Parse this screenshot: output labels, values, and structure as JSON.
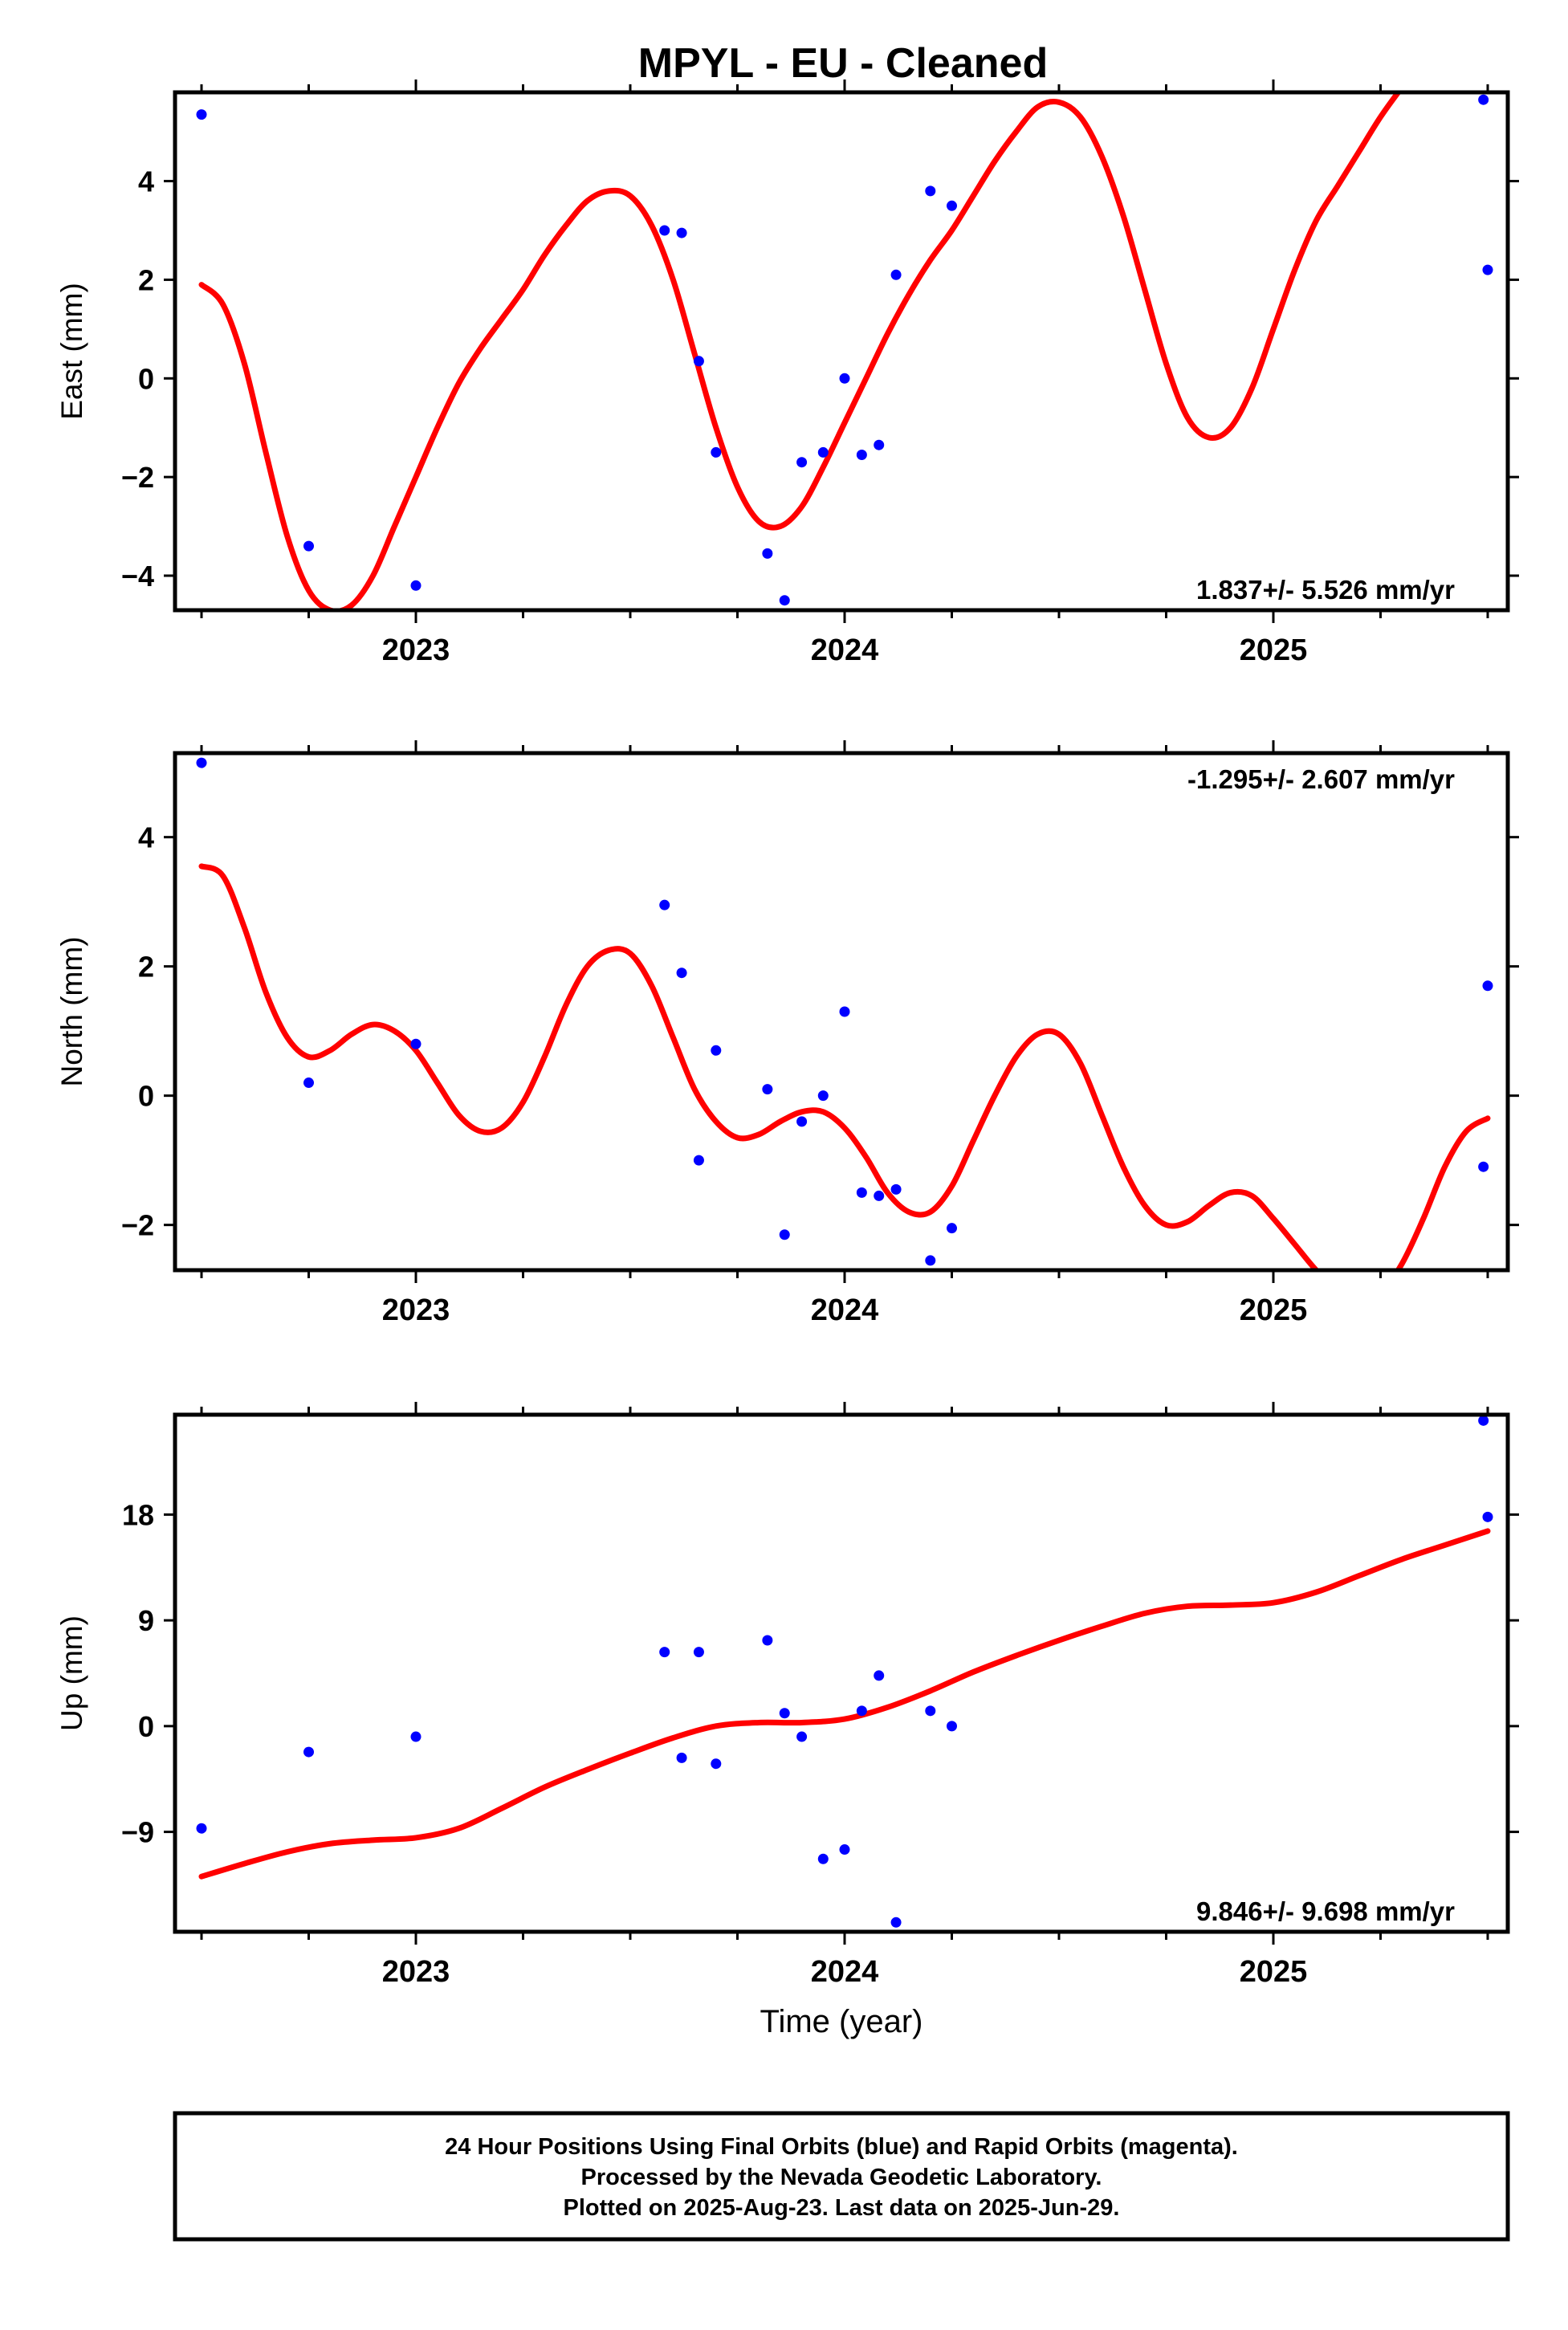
{
  "title": "MPYL  - EU - Cleaned",
  "footer": {
    "lines": [
      "24 Hour Positions Using Final Orbits (blue) and Rapid Orbits (magenta).",
      "Processed by the Nevada Geodetic Laboratory.",
      "Plotted on 2025-Aug-23. Last data on 2025-Jun-29."
    ]
  },
  "colors": {
    "points": "#0000ff",
    "fit": "#ff0000",
    "frame": "#000000"
  },
  "chart_data": [
    {
      "type": "scatter",
      "ylabel": "East (mm)",
      "xlabel": "",
      "xlim": [
        2022.5,
        2025.6
      ],
      "ylim": [
        -4.7,
        5.8
      ],
      "yticks": [
        -4,
        -2,
        0,
        2,
        4
      ],
      "yticklabels": [
        "−4",
        "−2",
        "0",
        "2",
        "4"
      ],
      "xticks": [
        2023,
        2024,
        2025
      ],
      "xticklabels": [
        "2023",
        "2024",
        "2025"
      ],
      "rate_label": "1.837+/- 5.526 mm/yr",
      "rate_position": "bottom-right",
      "series": [
        {
          "kind": "points",
          "x": [
            2022.5,
            2022.75,
            2023.0,
            2023.58,
            2023.62,
            2023.66,
            2023.7,
            2023.82,
            2023.86,
            2023.9,
            2023.95,
            2024.0,
            2024.04,
            2024.08,
            2024.12,
            2024.2,
            2024.25,
            2025.49,
            2025.5
          ],
          "y": [
            5.35,
            -3.4,
            -4.2,
            3.0,
            2.95,
            0.35,
            -1.5,
            -3.55,
            -4.5,
            -1.7,
            -1.5,
            0.0,
            -1.55,
            -1.35,
            2.1,
            3.8,
            3.5,
            5.65,
            2.2
          ]
        },
        {
          "kind": "line",
          "x": [
            2022.5,
            2022.55,
            2022.6,
            2022.65,
            2022.7,
            2022.75,
            2022.8,
            2022.85,
            2022.9,
            2022.95,
            2023.0,
            2023.05,
            2023.1,
            2023.15,
            2023.2,
            2023.25,
            2023.3,
            2023.35,
            2023.4,
            2023.45,
            2023.5,
            2023.55,
            2023.6,
            2023.65,
            2023.7,
            2023.75,
            2023.8,
            2023.85,
            2023.9,
            2023.95,
            2024.0,
            2024.05,
            2024.1,
            2024.15,
            2024.2,
            2024.25,
            2024.3,
            2024.35,
            2024.4,
            2024.45,
            2024.5,
            2024.55,
            2024.6,
            2024.65,
            2024.7,
            2024.75,
            2024.8,
            2024.85,
            2024.9,
            2024.95,
            2025.0,
            2025.05,
            2025.1,
            2025.15,
            2025.2,
            2025.25,
            2025.3,
            2025.32
          ],
          "y": [
            1.9,
            1.5,
            0.3,
            -1.5,
            -3.2,
            -4.3,
            -4.7,
            -4.6,
            -4.0,
            -3.0,
            -2.0,
            -1.0,
            -0.1,
            0.6,
            1.2,
            1.8,
            2.5,
            3.1,
            3.6,
            3.8,
            3.7,
            3.1,
            2.0,
            0.5,
            -1.0,
            -2.2,
            -2.9,
            -3.0,
            -2.6,
            -1.8,
            -0.9,
            0.0,
            0.9,
            1.7,
            2.4,
            3.0,
            3.7,
            4.4,
            5.0,
            5.5,
            5.6,
            5.3,
            4.5,
            3.3,
            1.8,
            0.3,
            -0.8,
            -1.2,
            -1.0,
            -0.2,
            1.0,
            2.2,
            3.2,
            3.9,
            4.6,
            5.3,
            5.9,
            6.1
          ]
        }
      ]
    },
    {
      "type": "scatter",
      "ylabel": "North (mm)",
      "xlabel": "",
      "xlim": [
        2022.5,
        2025.6
      ],
      "ylim": [
        -2.7,
        5.3
      ],
      "yticks": [
        -2,
        0,
        2,
        4
      ],
      "yticklabels": [
        "−2",
        "0",
        "2",
        "4"
      ],
      "xticks": [
        2023,
        2024,
        2025
      ],
      "xticklabels": [
        "2023",
        "2024",
        "2025"
      ],
      "rate_label": "-1.295+/- 2.607 mm/yr",
      "rate_position": "top-right",
      "series": [
        {
          "kind": "points",
          "x": [
            2022.5,
            2022.75,
            2023.0,
            2023.58,
            2023.62,
            2023.66,
            2023.7,
            2023.82,
            2023.86,
            2023.9,
            2023.95,
            2024.0,
            2024.04,
            2024.08,
            2024.12,
            2024.2,
            2024.25,
            2025.49,
            2025.5
          ],
          "y": [
            5.15,
            0.2,
            0.8,
            2.95,
            1.9,
            -1.0,
            0.7,
            0.1,
            -2.15,
            -0.4,
            0.0,
            1.3,
            -1.5,
            -1.55,
            -1.45,
            -2.55,
            -2.05,
            -1.1,
            1.7
          ]
        },
        {
          "kind": "line",
          "x": [
            2022.5,
            2022.55,
            2022.6,
            2022.65,
            2022.7,
            2022.75,
            2022.8,
            2022.85,
            2022.9,
            2022.95,
            2023.0,
            2023.05,
            2023.1,
            2023.15,
            2023.2,
            2023.25,
            2023.3,
            2023.35,
            2023.4,
            2023.45,
            2023.5,
            2023.55,
            2023.6,
            2023.65,
            2023.7,
            2023.75,
            2023.8,
            2023.85,
            2023.9,
            2023.95,
            2024.0,
            2024.05,
            2024.1,
            2024.15,
            2024.2,
            2024.25,
            2024.3,
            2024.35,
            2024.4,
            2024.45,
            2024.5,
            2024.55,
            2024.6,
            2024.65,
            2024.7,
            2024.75,
            2024.8,
            2024.85,
            2024.9,
            2024.95,
            2025.0,
            2025.05,
            2025.1,
            2025.15,
            2025.2,
            2025.25,
            2025.3,
            2025.35,
            2025.4,
            2025.45,
            2025.5
          ],
          "y": [
            3.55,
            3.4,
            2.6,
            1.6,
            0.9,
            0.6,
            0.7,
            0.95,
            1.1,
            1.0,
            0.7,
            0.2,
            -0.3,
            -0.55,
            -0.5,
            -0.1,
            0.6,
            1.4,
            2.0,
            2.25,
            2.2,
            1.7,
            0.9,
            0.1,
            -0.4,
            -0.65,
            -0.6,
            -0.4,
            -0.25,
            -0.25,
            -0.5,
            -0.95,
            -1.5,
            -1.8,
            -1.8,
            -1.4,
            -0.7,
            0.0,
            0.6,
            0.95,
            0.95,
            0.5,
            -0.3,
            -1.1,
            -1.7,
            -2.0,
            -1.95,
            -1.7,
            -1.5,
            -1.55,
            -1.9,
            -2.3,
            -2.7,
            -3.0,
            -3.15,
            -3.05,
            -2.6,
            -1.9,
            -1.1,
            -0.55,
            -0.35
          ]
        }
      ]
    },
    {
      "type": "scatter",
      "ylabel": "Up (mm)",
      "xlabel": "Time (year)",
      "xlim": [
        2022.5,
        2025.6
      ],
      "ylim": [
        -17.5,
        26.5
      ],
      "yticks": [
        -9,
        0,
        9,
        18
      ],
      "yticklabels": [
        "−9",
        "0",
        "9",
        "18"
      ],
      "xticks": [
        2023,
        2024,
        2025
      ],
      "xticklabels": [
        "2023",
        "2024",
        "2025"
      ],
      "rate_label": "9.846+/- 9.698 mm/yr",
      "rate_position": "bottom-right",
      "series": [
        {
          "kind": "points",
          "x": [
            2022.5,
            2022.75,
            2023.0,
            2023.58,
            2023.62,
            2023.66,
            2023.7,
            2023.82,
            2023.86,
            2023.9,
            2023.95,
            2024.0,
            2024.04,
            2024.08,
            2024.12,
            2024.2,
            2024.25,
            2025.49,
            2025.5
          ],
          "y": [
            -8.7,
            -2.2,
            -0.9,
            6.3,
            -2.7,
            6.3,
            -3.2,
            7.3,
            1.1,
            -0.9,
            -11.3,
            -10.5,
            1.3,
            4.3,
            -16.7,
            1.3,
            0.0,
            26.0,
            17.8
          ]
        },
        {
          "kind": "line",
          "x": [
            2022.5,
            2022.6,
            2022.7,
            2022.8,
            2022.9,
            2023.0,
            2023.1,
            2023.2,
            2023.3,
            2023.4,
            2023.5,
            2023.6,
            2023.7,
            2023.8,
            2023.9,
            2024.0,
            2024.1,
            2024.2,
            2024.3,
            2024.4,
            2024.5,
            2024.6,
            2024.7,
            2024.8,
            2024.9,
            2025.0,
            2025.1,
            2025.2,
            2025.3,
            2025.4,
            2025.5
          ],
          "y": [
            -12.8,
            -11.7,
            -10.7,
            -10.0,
            -9.7,
            -9.5,
            -8.7,
            -7.0,
            -5.2,
            -3.7,
            -2.3,
            -1.0,
            0.0,
            0.3,
            0.3,
            0.6,
            1.6,
            3.0,
            4.6,
            6.0,
            7.3,
            8.5,
            9.6,
            10.2,
            10.3,
            10.5,
            11.4,
            12.8,
            14.2,
            15.4,
            16.6
          ]
        }
      ]
    }
  ]
}
